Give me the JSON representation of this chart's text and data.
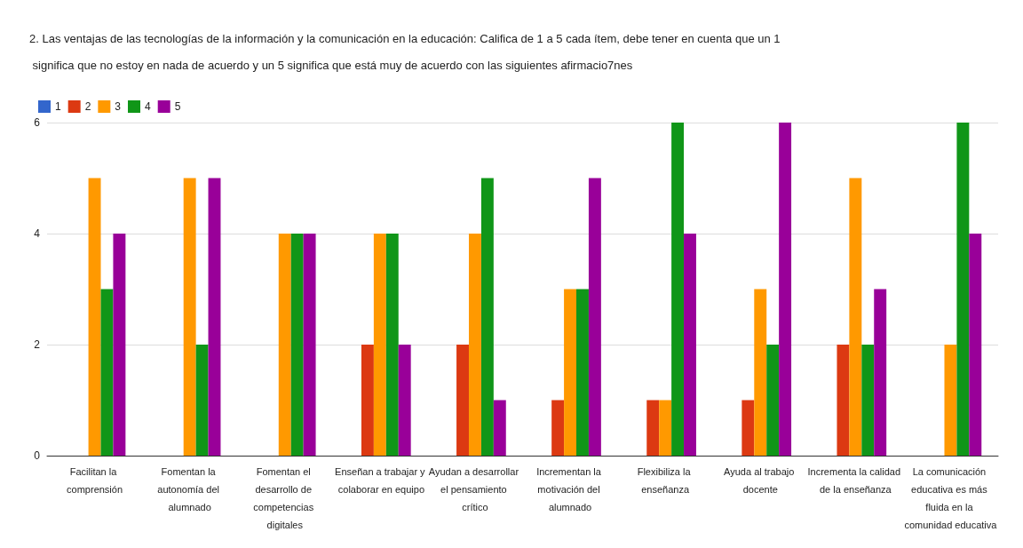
{
  "chart_data": {
    "type": "bar",
    "title": "2. Las ventajas de las tecnologías de la información y la comunicación en la educación: Califica de 1 a 5 cada ítem, debe tener en cuenta que un 1 significa que no estoy en nada de acuerdo y un 5 significa que está muy de acuerdo con las siguientes afirmacio7nes",
    "categories": [
      "Facilitan la comprensión",
      "Fomentan la autonomía del alumnado",
      "Fomentan el desarrollo de competencias digitales",
      "Enseñan a trabajar y colaborar en equipo",
      "Ayudan a desarrollar el pensamiento crítico",
      "Incrementan la motivación del alumnado",
      "Flexibiliza la enseñanza",
      "Ayuda al trabajo docente",
      "Incrementa la calidad de la enseñanza",
      "La comunicación educativa es más fluida en la comunidad educativa"
    ],
    "series": [
      {
        "name": "1",
        "color": "#3366cc",
        "values": [
          0,
          0,
          0,
          0,
          0,
          0,
          0,
          0,
          0,
          0
        ]
      },
      {
        "name": "2",
        "color": "#dc3912",
        "values": [
          0,
          0,
          0,
          2,
          2,
          1,
          1,
          1,
          2,
          0
        ]
      },
      {
        "name": "3",
        "color": "#ff9900",
        "values": [
          5,
          5,
          4,
          4,
          4,
          3,
          1,
          3,
          5,
          2
        ]
      },
      {
        "name": "4",
        "color": "#109618",
        "values": [
          3,
          2,
          4,
          4,
          5,
          3,
          6,
          2,
          2,
          6
        ]
      },
      {
        "name": "5",
        "color": "#990099",
        "values": [
          4,
          5,
          4,
          2,
          1,
          5,
          4,
          6,
          3,
          4
        ]
      }
    ],
    "ylim": [
      0,
      6
    ],
    "yticks": [
      0,
      2,
      4,
      6
    ],
    "grid": "y",
    "legend": "top left"
  }
}
